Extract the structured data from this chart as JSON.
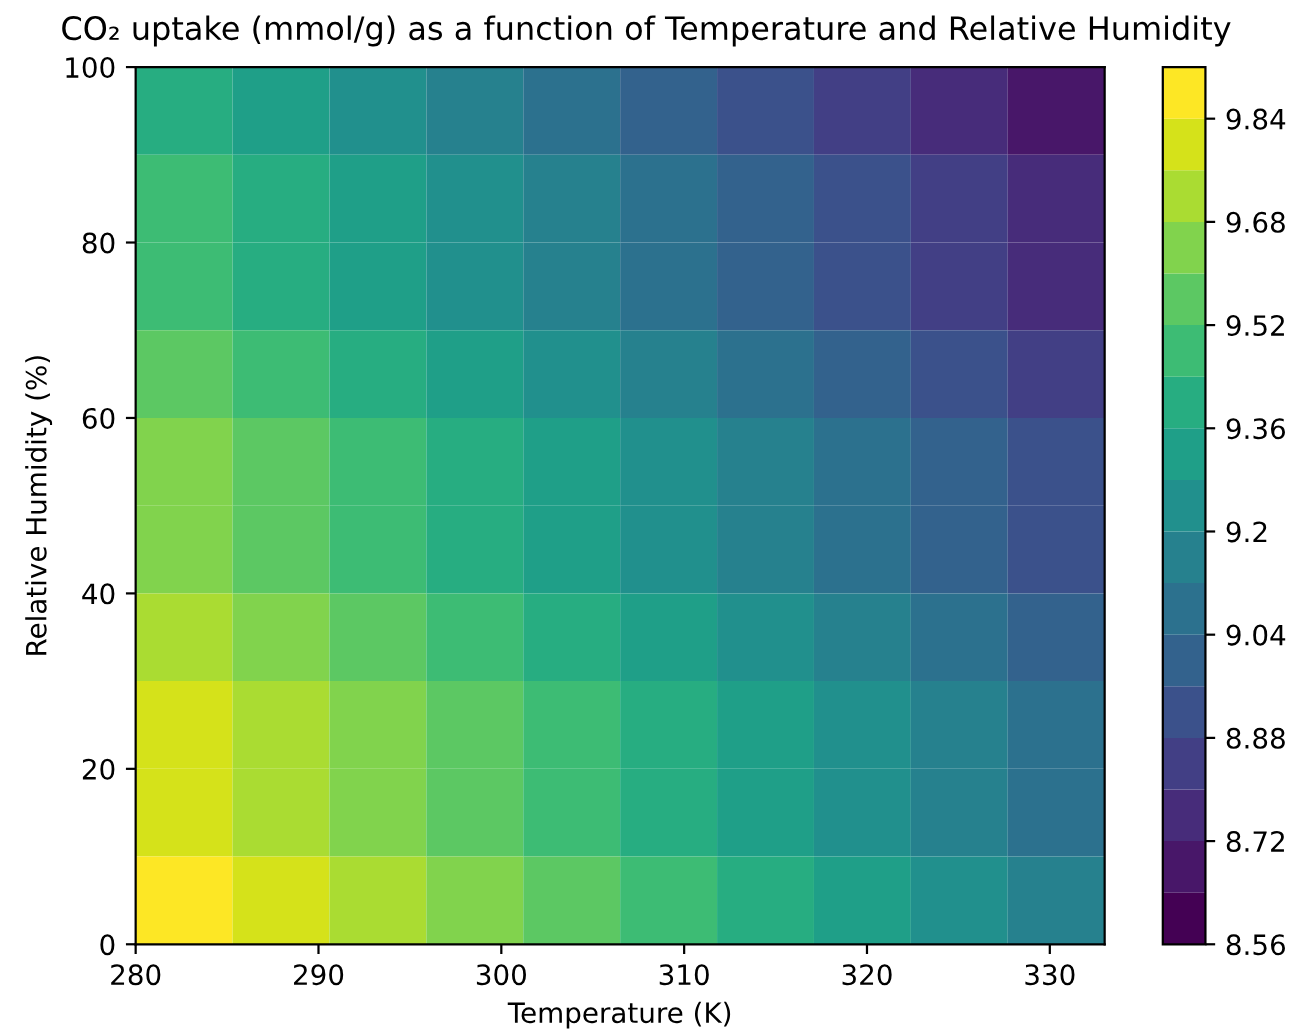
{
  "chart_data": {
    "type": "heatmap",
    "title": "CO₂ uptake (mmol/g) as a function of Temperature and Relative Humidity",
    "xlabel": "Temperature (K)",
    "ylabel": "Relative Humidity (%)",
    "x": [
      282.65,
      287.95,
      293.25,
      298.55,
      303.85,
      309.15,
      314.45,
      319.75,
      325.05,
      330.35
    ],
    "y": [
      95,
      85,
      75,
      65,
      55,
      45,
      35,
      25,
      15,
      5
    ],
    "cells": [
      [
        9.415,
        9.335,
        9.255,
        9.175,
        9.095,
        9.015,
        8.935,
        8.855,
        8.775,
        8.695
      ],
      [
        9.465,
        9.385,
        9.305,
        9.225,
        9.145,
        9.065,
        8.985,
        8.905,
        8.825,
        8.745
      ],
      [
        9.515,
        9.435,
        9.355,
        9.275,
        9.195,
        9.115,
        9.035,
        8.955,
        8.875,
        8.795
      ],
      [
        9.565,
        9.485,
        9.405,
        9.325,
        9.245,
        9.165,
        9.085,
        9.005,
        8.925,
        8.845
      ],
      [
        9.615,
        9.535,
        9.455,
        9.375,
        9.295,
        9.215,
        9.135,
        9.055,
        8.975,
        8.895
      ],
      [
        9.665,
        9.585,
        9.505,
        9.425,
        9.345,
        9.265,
        9.185,
        9.105,
        9.025,
        8.945
      ],
      [
        9.715,
        9.635,
        9.555,
        9.475,
        9.395,
        9.315,
        9.235,
        9.155,
        9.075,
        8.995
      ],
      [
        9.765,
        9.685,
        9.605,
        9.525,
        9.445,
        9.365,
        9.285,
        9.205,
        9.125,
        9.045
      ],
      [
        9.815,
        9.735,
        9.655,
        9.575,
        9.495,
        9.415,
        9.335,
        9.255,
        9.175,
        9.095
      ],
      [
        9.865,
        9.785,
        9.705,
        9.625,
        9.545,
        9.465,
        9.385,
        9.305,
        9.225,
        9.145
      ]
    ],
    "xlim": [
      280,
      333
    ],
    "ylim": [
      0,
      100
    ],
    "xticks": [
      280,
      290,
      300,
      310,
      320,
      330
    ],
    "yticks": [
      0,
      20,
      40,
      60,
      80,
      100
    ],
    "clim": [
      8.56,
      9.92
    ],
    "cticks": [
      8.56,
      8.72,
      8.88,
      9.04,
      9.2,
      9.36,
      9.52,
      9.68,
      9.84
    ]
  }
}
